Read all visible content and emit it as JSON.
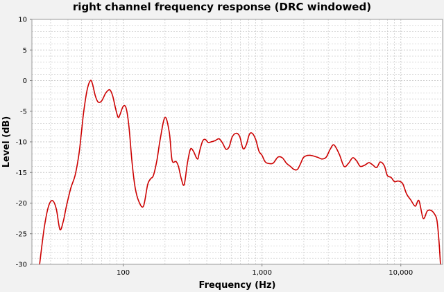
{
  "chart_data": {
    "type": "line",
    "title": "right channel frequency response (DRC windowed)",
    "xlabel": "Frequency (Hz)",
    "ylabel": "Level (dB)",
    "x_scale": "log",
    "xlim": [
      22,
      20000
    ],
    "ylim": [
      -30,
      10
    ],
    "x_ticks": [
      {
        "value": 100,
        "label": "100"
      },
      {
        "value": 1000,
        "label": "1,000"
      },
      {
        "value": 10000,
        "label": "10,000"
      }
    ],
    "y_ticks": [
      {
        "value": 10,
        "label": "10"
      },
      {
        "value": 5,
        "label": "5"
      },
      {
        "value": 0,
        "label": "0"
      },
      {
        "value": -5,
        "label": "-5"
      },
      {
        "value": -10,
        "label": "-10"
      },
      {
        "value": -15,
        "label": "-15"
      },
      {
        "value": -20,
        "label": "-20"
      },
      {
        "value": -25,
        "label": "-25"
      },
      {
        "value": -30,
        "label": "-30"
      }
    ],
    "grid": true,
    "legend": "none",
    "colors": {
      "line": "#cc0000",
      "background": "#ffffff",
      "page": "#f2f2f2",
      "grid": "#c8c8c8"
    },
    "series": [
      {
        "x": [
          25,
          27,
          29,
          31,
          33,
          35,
          37,
          39,
          42,
          45,
          48,
          50,
          52,
          55,
          58,
          60,
          63,
          66,
          70,
          75,
          80,
          84,
          88,
          92,
          95,
          100,
          105,
          110,
          116,
          122,
          130,
          140,
          150,
          158,
          165,
          175,
          185,
          200,
          215,
          225,
          240,
          250,
          262,
          275,
          290,
          305,
          320,
          335,
          345,
          350,
          360,
          375,
          390,
          410,
          430,
          460,
          490,
          520,
          550,
          580,
          610,
          650,
          690,
          730,
          770,
          810,
          850,
          900,
          950,
          1000,
          1050,
          1100,
          1200,
          1300,
          1400,
          1500,
          1600,
          1700,
          1800,
          1900,
          2000,
          2200,
          2500,
          2700,
          2900,
          3100,
          3300,
          3600,
          3900,
          4200,
          4500,
          4800,
          5100,
          5500,
          5900,
          6300,
          6700,
          7100,
          7600,
          8000,
          8500,
          9000,
          9600,
          10300,
          11000,
          11800,
          12700,
          13500,
          14500,
          15500,
          16500,
          17500,
          18200,
          18800,
          19300
        ],
        "y": [
          -30,
          -24,
          -20.5,
          -19.6,
          -21,
          -24.3,
          -23,
          -20.5,
          -17.5,
          -15.5,
          -12,
          -8.5,
          -5,
          -1.5,
          0,
          -0.5,
          -2.5,
          -3.5,
          -3.3,
          -2,
          -1.5,
          -2.5,
          -4.5,
          -6,
          -5.5,
          -4.2,
          -4.5,
          -7.5,
          -13.5,
          -17.5,
          -19.8,
          -20.5,
          -17,
          -16,
          -15.5,
          -13,
          -9.5,
          -6,
          -8.5,
          -13,
          -13.2,
          -14,
          -16,
          -17,
          -13.5,
          -11.2,
          -11.5,
          -12.5,
          -12.8,
          -12.2,
          -11,
          -9.8,
          -9.6,
          -10.1,
          -10,
          -9.8,
          -9.5,
          -10.2,
          -11.2,
          -10.8,
          -9.2,
          -8.6,
          -9.1,
          -11.1,
          -10.5,
          -8.8,
          -8.6,
          -9.6,
          -11.5,
          -12.2,
          -13.2,
          -13.5,
          -13.5,
          -12.5,
          -12.6,
          -13.5,
          -14,
          -14.5,
          -14.5,
          -13.5,
          -12.5,
          -12.2,
          -12.5,
          -12.8,
          -12.5,
          -11.2,
          -10.5,
          -12,
          -14,
          -13.5,
          -12.6,
          -13.1,
          -14,
          -13.8,
          -13.4,
          -13.8,
          -14.2,
          -13.3,
          -13.9,
          -15.5,
          -15.8,
          -16.5,
          -16.4,
          -16.8,
          -18.5,
          -19.5,
          -20.5,
          -19.6,
          -22.5,
          -21.3,
          -21.2,
          -21.8,
          -22.8,
          -26,
          -30
        ]
      }
    ]
  }
}
